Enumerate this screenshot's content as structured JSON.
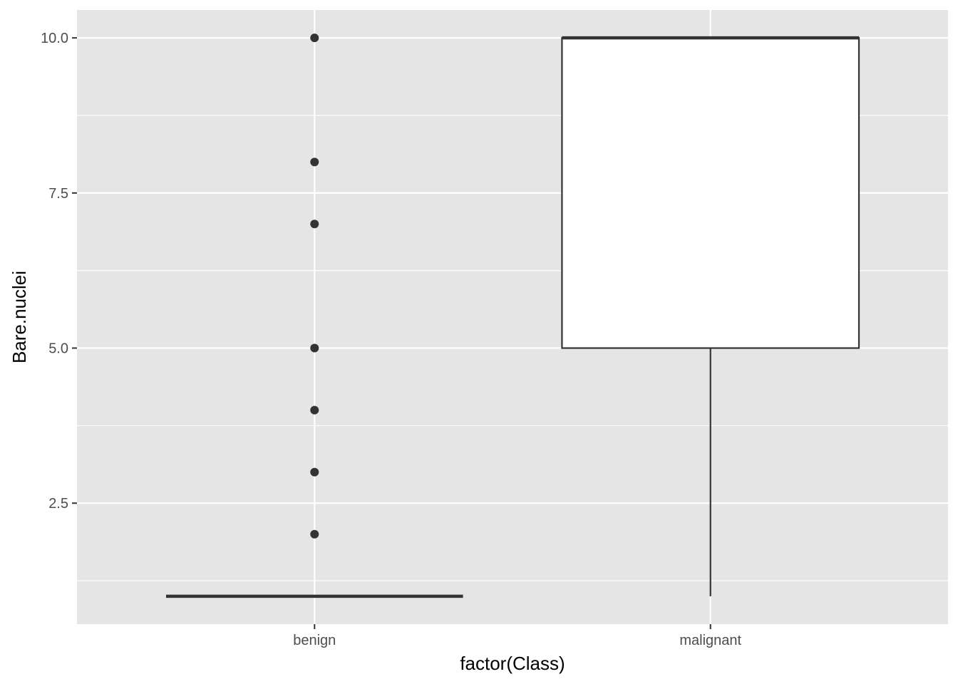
{
  "chart_data": {
    "type": "boxplot",
    "title": "",
    "xlabel": "factor(Class)",
    "ylabel": "Bare.nuclei",
    "categories": [
      "benign",
      "malignant"
    ],
    "ylim": [
      0.55,
      10.45
    ],
    "y_ticks": [
      2.5,
      5.0,
      7.5,
      10.0
    ],
    "y_tick_labels": [
      "2.5",
      "5.0",
      "7.5",
      "10.0"
    ],
    "grid": true,
    "legend": "none",
    "boxes": [
      {
        "category": "benign",
        "lower_whisker": 1,
        "q1": 1,
        "median": 1,
        "q3": 1,
        "upper_whisker": 1,
        "outliers": [
          2,
          3,
          4,
          5,
          7,
          8,
          10
        ]
      },
      {
        "category": "malignant",
        "lower_whisker": 1,
        "q1": 5,
        "median": 10,
        "q3": 10,
        "upper_whisker": 10,
        "outliers": []
      }
    ],
    "colors": {
      "panel_background": "#e5e5e5",
      "grid": "#ffffff",
      "box_fill": "#ffffff",
      "box_line": "#333333",
      "outlier": "#333333"
    }
  }
}
